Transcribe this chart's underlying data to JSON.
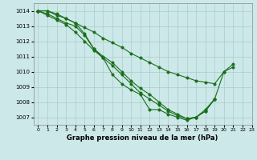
{
  "xlabel": "Graphe pression niveau de la mer (hPa)",
  "background_color": "#cce8e8",
  "grid_color": "#aacccc",
  "line_color": "#1a6e1a",
  "xlim": [
    -0.5,
    23
  ],
  "ylim": [
    1006.5,
    1014.5
  ],
  "yticks": [
    1007,
    1008,
    1009,
    1010,
    1011,
    1012,
    1013,
    1014
  ],
  "xticks": [
    0,
    1,
    2,
    3,
    4,
    5,
    6,
    7,
    8,
    9,
    10,
    11,
    12,
    13,
    14,
    15,
    16,
    17,
    18,
    19,
    20,
    21,
    22,
    23
  ],
  "line_long": [
    1014.0,
    1014.0,
    1013.7,
    1013.5,
    1013.2,
    1012.9,
    1012.6,
    1012.2,
    1011.9,
    1011.6,
    1011.2,
    1010.9,
    1010.6,
    1010.3,
    1010.0,
    1009.8,
    1009.6,
    1009.4,
    1009.3,
    1009.2,
    1010.0,
    1010.3,
    null,
    null
  ],
  "line1": [
    1014.0,
    1014.0,
    1013.8,
    1013.5,
    1013.2,
    1012.5,
    1011.5,
    1010.9,
    1009.8,
    1009.2,
    1008.8,
    1008.5,
    1007.5,
    1007.5,
    1007.2,
    1007.0,
    1006.8,
    1007.0,
    1007.5,
    1008.2,
    1010.0,
    1010.5,
    null,
    null
  ],
  "line2": [
    1014.0,
    1013.8,
    1013.5,
    1013.2,
    1013.0,
    1012.4,
    1011.5,
    1011.0,
    1010.6,
    1010.0,
    1009.4,
    1008.9,
    1008.5,
    1008.0,
    1007.5,
    1007.2,
    1006.9,
    1007.0,
    1007.4,
    1008.2,
    null,
    null,
    null,
    null
  ],
  "line3": [
    1014.0,
    1013.7,
    1013.4,
    1013.1,
    1012.6,
    1012.0,
    1011.4,
    1010.9,
    1010.4,
    1009.8,
    1009.2,
    1008.6,
    1008.2,
    1007.8,
    1007.4,
    1007.1,
    1006.9,
    1007.0,
    1007.4,
    1008.2,
    null,
    null,
    null,
    null
  ]
}
